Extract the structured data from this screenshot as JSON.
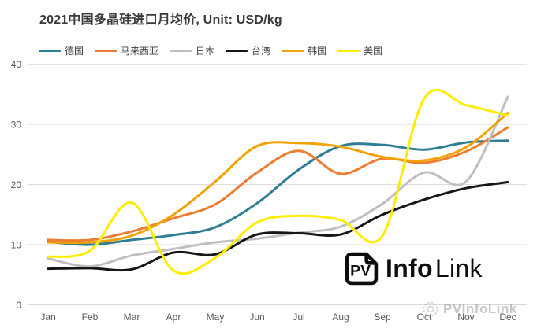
{
  "title": "2021中国多晶硅进口月均价, Unit: USD/kg",
  "logo": {
    "pv": "PV",
    "info": "Info",
    "link": "Link"
  },
  "watermark": {
    "text": "PVInfoLink"
  },
  "axis": {
    "label_color": "#595959",
    "grid_color": "#d9d9d9"
  },
  "chart_data": {
    "type": "line",
    "title": "2021中国多晶硅进口月均价, Unit: USD/kg",
    "unit": "USD/kg",
    "categories": [
      "Jan",
      "Feb",
      "Mar",
      "Apr",
      "May",
      "Jun",
      "Jul",
      "Aug",
      "Sep",
      "Oct",
      "Nov",
      "Dec"
    ],
    "ylim": [
      0,
      40
    ],
    "yticks": [
      0,
      10,
      20,
      30,
      40
    ],
    "grid": true,
    "smooth": true,
    "legend_position": "top",
    "series": [
      {
        "name": "德国",
        "color": "#2f7e95",
        "values": [
          10.5,
          10.0,
          10.8,
          11.6,
          12.9,
          16.9,
          22.5,
          26.4,
          26.6,
          25.8,
          27.0,
          27.3
        ]
      },
      {
        "name": "马来西亚",
        "color": "#ed7d31",
        "values": [
          10.8,
          10.8,
          12.2,
          14.4,
          16.7,
          22.0,
          25.6,
          21.8,
          24.3,
          23.6,
          25.5,
          29.5
        ]
      },
      {
        "name": "日本",
        "color": "#bfbfbf",
        "values": [
          7.7,
          6.4,
          8.2,
          9.3,
          10.4,
          11.0,
          12.0,
          13.0,
          16.8,
          22.0,
          20.5,
          34.6
        ]
      },
      {
        "name": "台湾",
        "color": "#161616",
        "values": [
          6.0,
          6.1,
          5.9,
          8.7,
          8.4,
          11.7,
          11.9,
          11.7,
          15.0,
          17.5,
          19.4,
          20.4
        ]
      },
      {
        "name": "韩国",
        "color": "#f2a202",
        "values": [
          10.4,
          10.4,
          11.5,
          15.0,
          20.5,
          26.4,
          26.9,
          26.3,
          24.6,
          24.0,
          26.2,
          31.9
        ]
      },
      {
        "name": "美国",
        "color": "#ffed00",
        "values": [
          8.0,
          9.0,
          17.0,
          5.7,
          7.8,
          13.7,
          14.8,
          14.1,
          11.5,
          34.3,
          33.2,
          31.5
        ]
      }
    ]
  }
}
